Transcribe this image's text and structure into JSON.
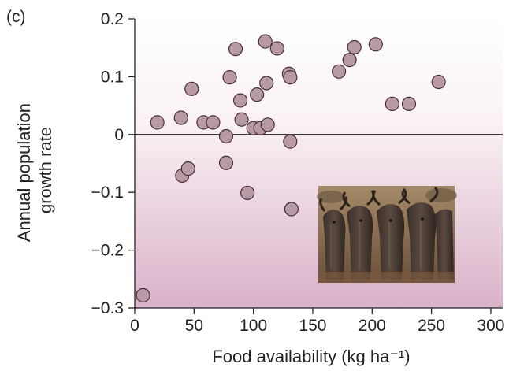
{
  "chart_data": {
    "type": "scatter",
    "panel_label": "(c)",
    "xlabel": "Food availability (kg ha⁻¹)",
    "ylabel_lines": [
      "Annual population",
      "growth rate"
    ],
    "xlim": [
      0,
      310
    ],
    "ylim": [
      -0.3,
      0.2
    ],
    "xticks": [
      0,
      50,
      100,
      150,
      200,
      250,
      300
    ],
    "yticks": [
      -0.3,
      -0.2,
      -0.1,
      0,
      0.1,
      0.2
    ],
    "ytick_labels": [
      "−0.3",
      "−0.2",
      "−0.1",
      "0",
      "0.1",
      "0.2"
    ],
    "reference_line_y": 0,
    "colors": {
      "marker_fill": "#b89aa7",
      "marker_stroke": "#4a2f3a",
      "background_top": "#ffffff",
      "background_bottom": "#dcb8cc",
      "axis": "#222222"
    },
    "points": [
      {
        "x": 7,
        "y": -0.278
      },
      {
        "x": 19,
        "y": 0.021
      },
      {
        "x": 39,
        "y": 0.029
      },
      {
        "x": 40,
        "y": -0.071
      },
      {
        "x": 45,
        "y": -0.059
      },
      {
        "x": 48,
        "y": 0.079
      },
      {
        "x": 58,
        "y": 0.021
      },
      {
        "x": 66,
        "y": 0.021
      },
      {
        "x": 77,
        "y": -0.003
      },
      {
        "x": 77,
        "y": -0.049
      },
      {
        "x": 80,
        "y": 0.099
      },
      {
        "x": 85,
        "y": 0.148
      },
      {
        "x": 89,
        "y": 0.059
      },
      {
        "x": 90,
        "y": 0.026
      },
      {
        "x": 95,
        "y": -0.101
      },
      {
        "x": 100,
        "y": 0.011
      },
      {
        "x": 103,
        "y": 0.069
      },
      {
        "x": 106,
        "y": 0.011
      },
      {
        "x": 110,
        "y": 0.161
      },
      {
        "x": 112,
        "y": 0.017
      },
      {
        "x": 111,
        "y": 0.089
      },
      {
        "x": 120,
        "y": 0.149
      },
      {
        "x": 130,
        "y": 0.105
      },
      {
        "x": 131,
        "y": 0.099
      },
      {
        "x": 131,
        "y": -0.012
      },
      {
        "x": 132,
        "y": -0.129
      },
      {
        "x": 172,
        "y": 0.109
      },
      {
        "x": 181,
        "y": 0.129
      },
      {
        "x": 185,
        "y": 0.151
      },
      {
        "x": 203,
        "y": 0.156
      },
      {
        "x": 217,
        "y": 0.053
      },
      {
        "x": 231,
        "y": 0.053
      },
      {
        "x": 256,
        "y": 0.091
      }
    ]
  },
  "photo": {
    "subject": "wildebeest herd"
  }
}
